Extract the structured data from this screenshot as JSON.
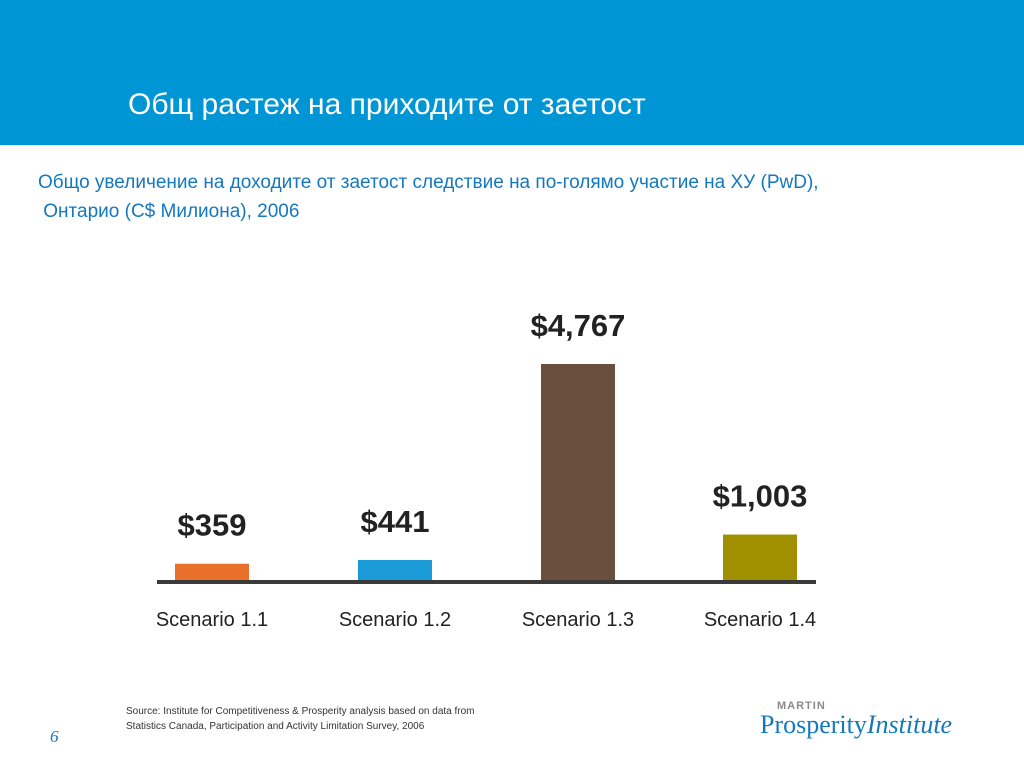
{
  "slide": {
    "title": "Общ растеж на приходите от заетост",
    "subtitle_line1": "Общо увеличение на доходите от заетост следствие на по-голямо участие на ХУ (PwD),",
    "subtitle_line2": " Онтарио (C$ Милиона), 2006",
    "page_number": "6"
  },
  "source": {
    "text": "Source: Institute for Competitiveness & Prosperity analysis based on data from Statistics Canada, Participation and Activity Limitation Survey, 2006"
  },
  "logo": {
    "top": "MARTIN",
    "word1": "Prosperity",
    "word2": "Institute"
  },
  "colors": {
    "header": "#0096d6",
    "subtitle": "#1478c0",
    "baseline": "#3a3a3a"
  },
  "chart_data": {
    "type": "bar",
    "categories": [
      "Scenario 1.1",
      "Scenario 1.2",
      "Scenario 1.3",
      "Scenario 1.4"
    ],
    "values": [
      359,
      441,
      4767,
      1003
    ],
    "data_labels": [
      "$359",
      "$441",
      "$4,767",
      "$1,003"
    ],
    "colors": [
      "#e9702a",
      "#1a9ad6",
      "#6a4e3e",
      "#a08f00"
    ],
    "title": "",
    "xlabel": "",
    "ylabel": "",
    "grid": false,
    "legend": "none"
  }
}
